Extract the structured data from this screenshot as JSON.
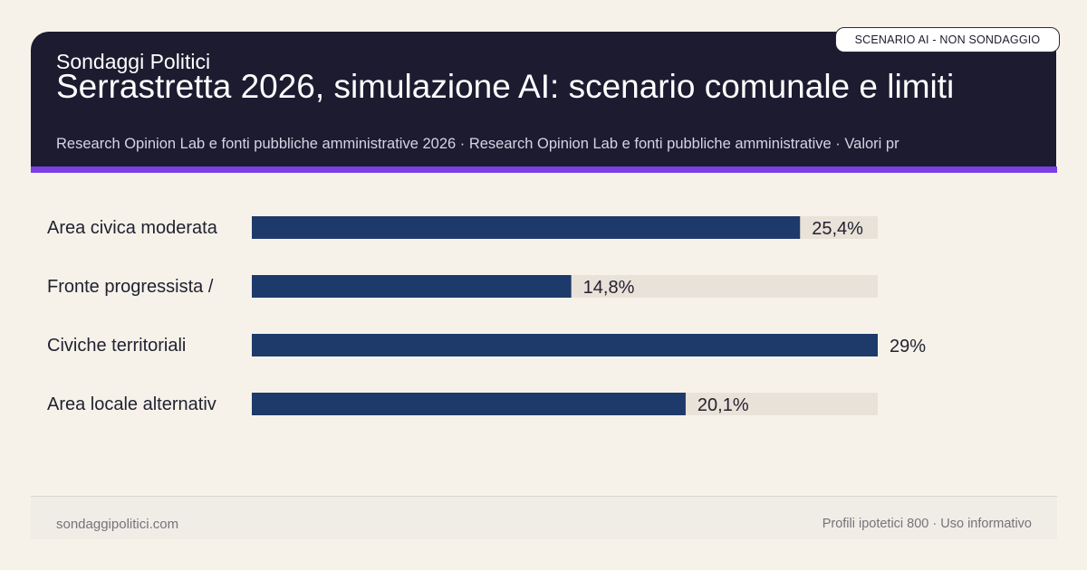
{
  "header": {
    "brand": "Sondaggi Politici",
    "title": "Serrastretta 2026, simulazione AI: scenario comunale e limiti",
    "subtitle": "Research Opinion Lab e fonti pubbliche amministrative 2026 · Research Opinion Lab e fonti pubbliche amministrative · Valori pr",
    "badge": "SCENARIO AI - NON SONDAGGIO"
  },
  "colors": {
    "header_bg": "#1c1b30",
    "accent": "#7b3fe4",
    "bar": "#1e3a6b",
    "track": "#e9e2d9",
    "background": "#f6f2ea"
  },
  "chart_data": {
    "type": "bar",
    "orientation": "horizontal",
    "categories": [
      "Area civica moderata",
      "Fronte progressista /",
      "Civiche territoriali",
      "Area locale alternativ"
    ],
    "values": [
      25.4,
      14.8,
      29,
      20.1
    ],
    "value_labels": [
      "25,4%",
      "14,8%",
      "29%",
      "20,1%"
    ],
    "xlim": [
      0,
      29
    ],
    "grid": false
  },
  "footer": {
    "site": "sondaggipolitici.com",
    "note": "Profili ipotetici 800 · Uso informativo"
  }
}
